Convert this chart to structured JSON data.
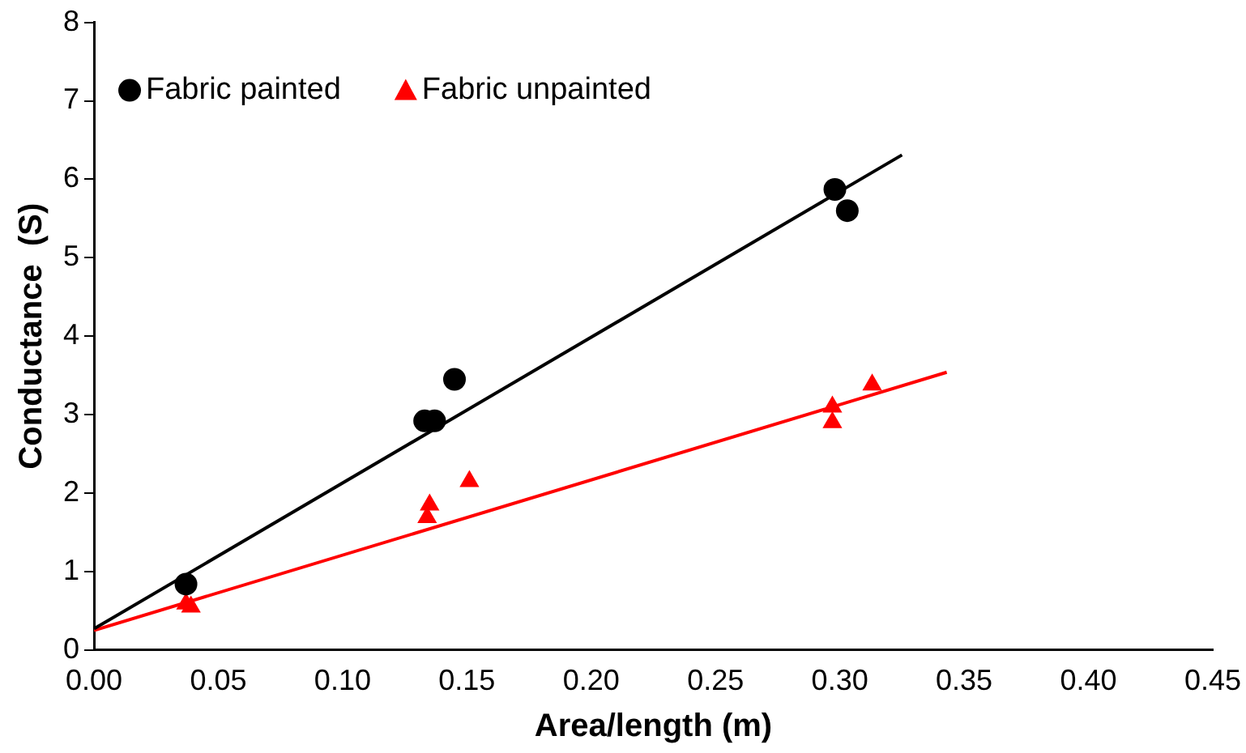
{
  "chart_data": {
    "type": "scatter",
    "xlabel": "Area/length (m)",
    "ylabel": "Conductance  (S)",
    "xlim": [
      0,
      0.45
    ],
    "xticks": [
      {
        "value": 0,
        "label": "0.00"
      },
      {
        "value": 0.05,
        "label": "0.05"
      },
      {
        "value": 0.1,
        "label": "0.10"
      },
      {
        "value": 0.15,
        "label": "0.15"
      },
      {
        "value": 0.2,
        "label": "0.20"
      },
      {
        "value": 0.25,
        "label": "0.25"
      },
      {
        "value": 0.3,
        "label": "0.30"
      },
      {
        "value": 0.35,
        "label": "0.35"
      },
      {
        "value": 0.4,
        "label": "0.40"
      },
      {
        "value": 0.45,
        "label": "0.45"
      }
    ],
    "ylim": [
      0,
      8
    ],
    "yticks": [
      0,
      1,
      2,
      3,
      4,
      5,
      6,
      7,
      8
    ],
    "grid": false,
    "legend": "top left",
    "series": [
      {
        "name": "Fabric painted",
        "color": "#000000",
        "marker": "circle",
        "x": [
          0.037,
          0.133,
          0.137,
          0.145,
          0.298,
          0.303
        ],
        "values": [
          0.84,
          2.92,
          2.92,
          3.45,
          5.87,
          5.6
        ]
      },
      {
        "name": "Fabric unpainted",
        "color": "#ff0000",
        "marker": "triangle",
        "x": [
          0.037,
          0.039,
          0.134,
          0.135,
          0.151,
          0.297,
          0.297,
          0.313
        ],
        "values": [
          0.59,
          0.55,
          1.69,
          1.85,
          2.15,
          2.9,
          3.1,
          3.38
        ]
      },
      {
        "type": "line",
        "color": "#000000",
        "marker": "none",
        "x": [
          0,
          0.325
        ],
        "values": [
          0.27,
          6.31
        ]
      },
      {
        "type": "line",
        "color": "#ff0000",
        "marker": "none",
        "x": [
          0,
          0.343
        ],
        "values": [
          0.25,
          3.54
        ]
      }
    ]
  }
}
